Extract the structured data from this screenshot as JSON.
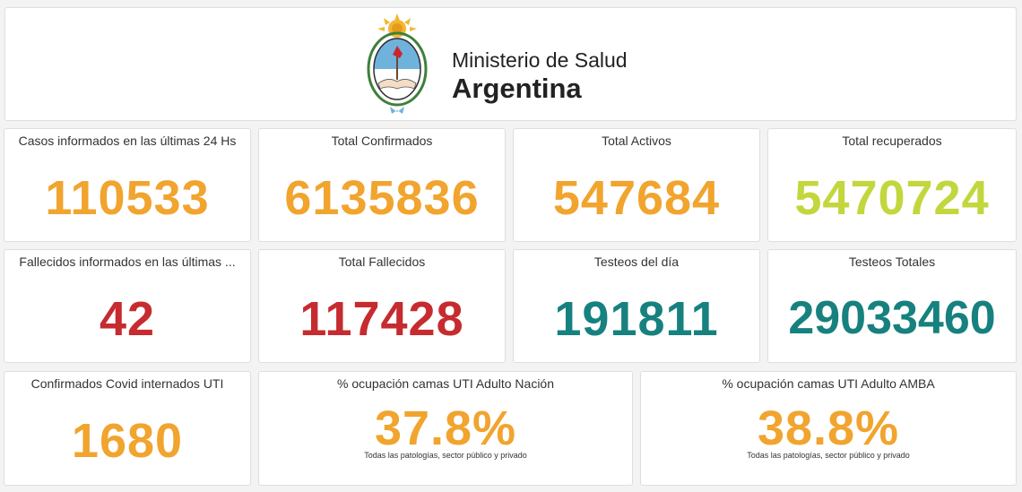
{
  "header": {
    "ministry": "Ministerio de Salud",
    "country": "Argentina",
    "logo_icon": "coat-of-arms-icon"
  },
  "colors": {
    "orange": "#f1a42e",
    "lime": "#c3d63d",
    "red": "#c62b2f",
    "teal": "#16817f"
  },
  "cards": [
    {
      "title": "Casos informados en las últimas 24 Hs",
      "value": "110533"
    },
    {
      "title": "Total Confirmados",
      "value": "6135836"
    },
    {
      "title": "Total Activos",
      "value": "547684"
    },
    {
      "title": "Total recuperados",
      "value": "5470724"
    },
    {
      "title": "Fallecidos informados en las últimas ...",
      "value": "42"
    },
    {
      "title": "Total Fallecidos",
      "value": "117428"
    },
    {
      "title": "Testeos del día",
      "value": "191811"
    },
    {
      "title": "Testeos Totales",
      "value": "29033460"
    },
    {
      "title": "Confirmados Covid internados UTI",
      "value": "1680"
    },
    {
      "title": "% ocupación camas UTI Adulto Nación",
      "value": "37.8%",
      "subtitle": "Todas las patologías, sector público y privado"
    },
    {
      "title": "% ocupación camas UTI Adulto AMBA",
      "value": "38.8%",
      "subtitle": "Todas las patologías, sector público y privado"
    }
  ]
}
